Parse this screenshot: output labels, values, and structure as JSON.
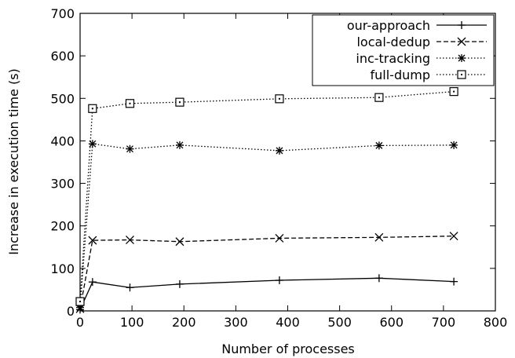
{
  "chart_data": {
    "type": "line",
    "title": "",
    "xlabel": "Number of processes",
    "ylabel": "Increase in execution time (s)",
    "xlim": [
      0,
      800
    ],
    "ylim": [
      0,
      700
    ],
    "xticks": [
      "0",
      "100",
      "200",
      "300",
      "400",
      "500",
      "600",
      "700",
      "800"
    ],
    "yticks": [
      "0",
      "100",
      "200",
      "300",
      "400",
      "500",
      "600",
      "700"
    ],
    "grid": false,
    "legend_position": "top-right",
    "series": [
      {
        "name": "our-approach",
        "line": "solid",
        "marker": "plus",
        "x": [
          0,
          24,
          96,
          192,
          384,
          576,
          720
        ],
        "y": [
          3,
          68,
          55,
          63,
          72,
          77,
          69
        ]
      },
      {
        "name": "local-dedup",
        "line": "dashed",
        "marker": "x",
        "x": [
          0,
          24,
          96,
          192,
          384,
          576,
          720
        ],
        "y": [
          5,
          166,
          167,
          163,
          171,
          173,
          176
        ]
      },
      {
        "name": "inc-tracking",
        "line": "dotted",
        "marker": "star",
        "x": [
          0,
          24,
          96,
          192,
          384,
          576,
          720
        ],
        "y": [
          8,
          393,
          381,
          390,
          377,
          389,
          390
        ]
      },
      {
        "name": "full-dump",
        "line": "dotted",
        "marker": "square",
        "x": [
          0,
          24,
          96,
          192,
          384,
          576,
          720
        ],
        "y": [
          22,
          476,
          488,
          491,
          499,
          502,
          516
        ]
      }
    ]
  }
}
